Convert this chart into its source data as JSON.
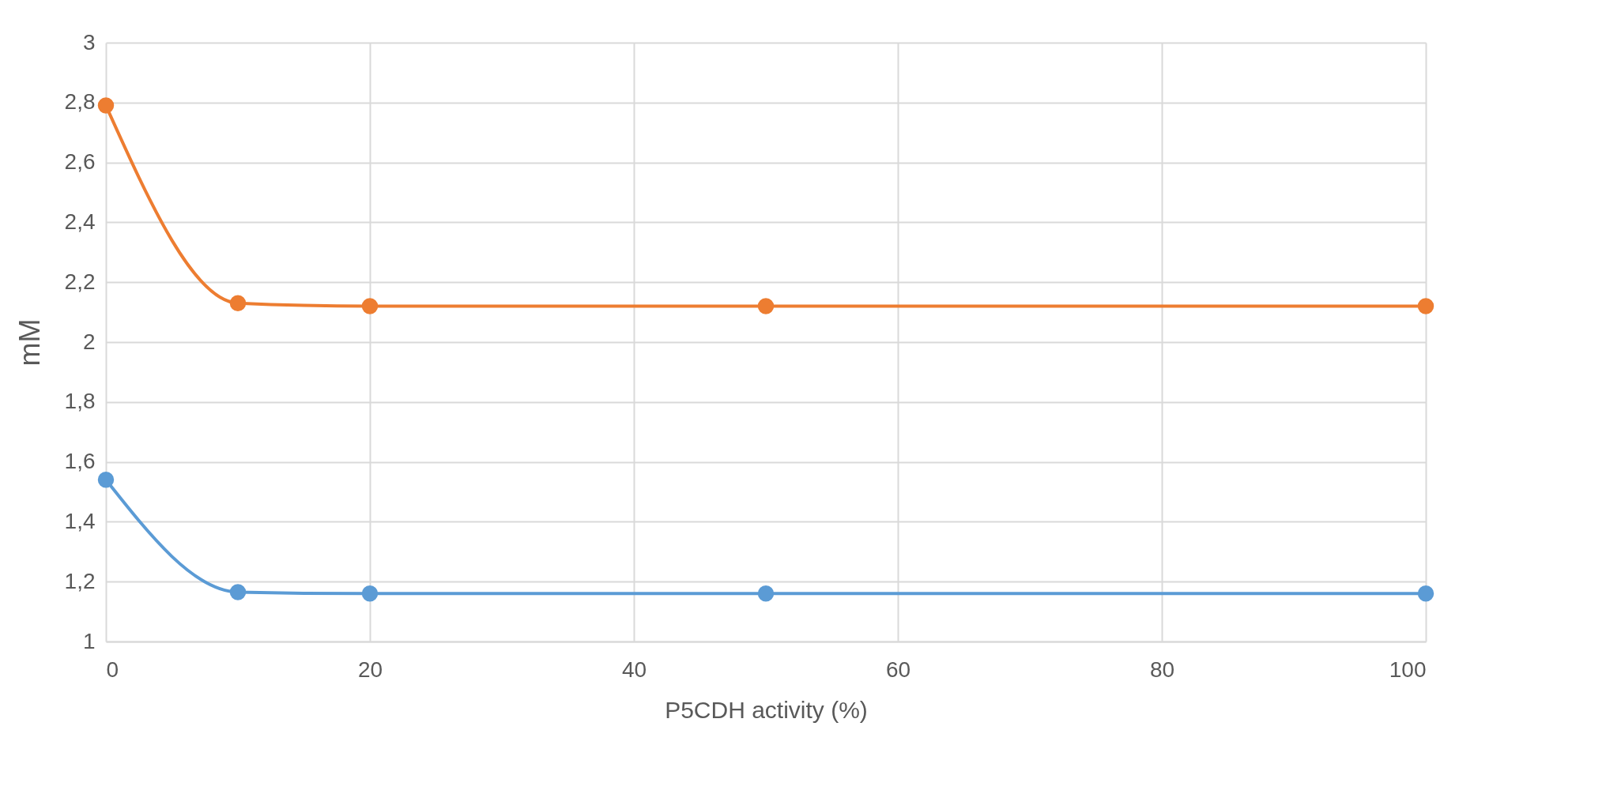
{
  "chart_data": {
    "type": "line",
    "xlabel": "P5CDH activity (%)",
    "ylabel": "mM",
    "x": [
      0,
      10,
      20,
      50,
      100
    ],
    "series": [
      {
        "color": "#ed7d31",
        "values": [
          2.79,
          2.13,
          2.12,
          2.12,
          2.12
        ]
      },
      {
        "color": "#5b9bd5",
        "values": [
          1.54,
          1.165,
          1.16,
          1.16,
          1.16
        ]
      }
    ],
    "xlim": [
      0,
      100
    ],
    "xticks": [
      0,
      20,
      40,
      60,
      80,
      100
    ],
    "ylim": [
      1,
      3
    ],
    "yticks": [
      1,
      {
        "value": 1.2,
        "label": "1,2"
      },
      {
        "value": 1.4,
        "label": "1,4"
      },
      {
        "value": 1.6,
        "label": "1,6"
      },
      {
        "value": 1.8,
        "label": "1,8"
      },
      2,
      {
        "value": 2.2,
        "label": "2,2"
      },
      {
        "value": 2.4,
        "label": "2,4"
      },
      {
        "value": 2.6,
        "label": "2,6"
      },
      {
        "value": 2.8,
        "label": "2,8"
      },
      3
    ],
    "grid": true,
    "marker": "circle",
    "line_style": "solid",
    "legend": false
  }
}
